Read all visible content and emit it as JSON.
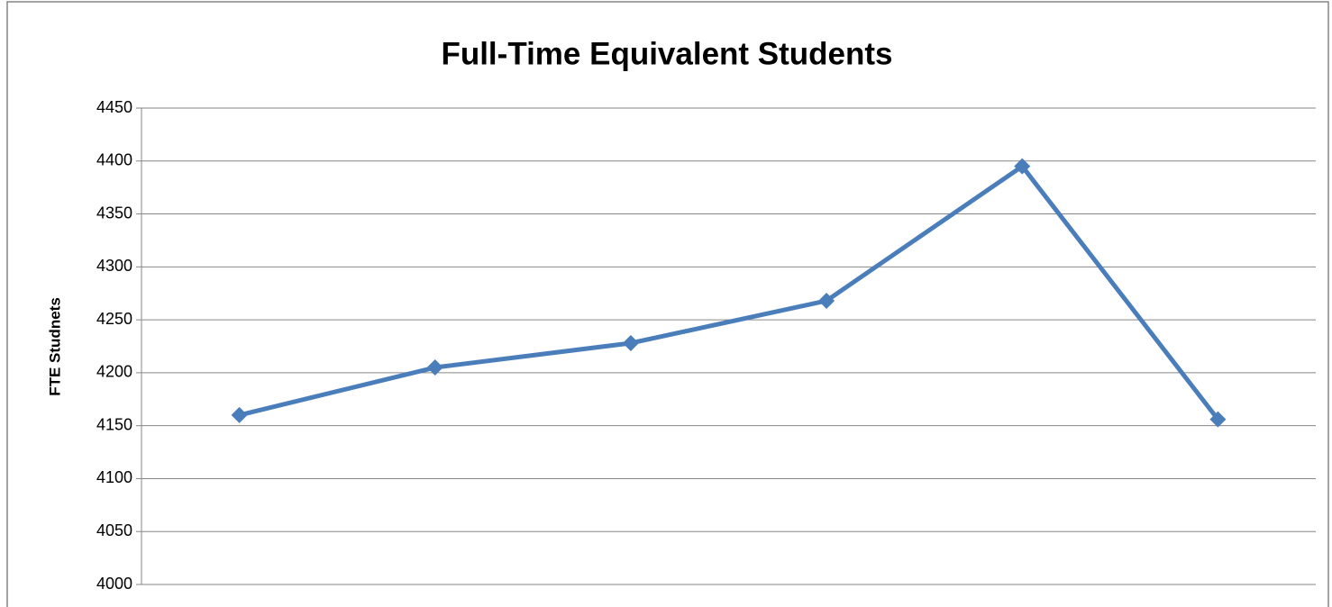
{
  "chart_data": {
    "type": "line",
    "title": "Full-Time Equivalent Students",
    "y_label": "FTE Studnets",
    "categories": [
      null,
      null,
      null,
      null,
      null,
      null
    ],
    "values": [
      4160,
      4205,
      4228,
      4268,
      4395,
      4156
    ],
    "color": "#4a7ebb",
    "ylim": [
      4000,
      4450
    ],
    "yticks": [
      4000,
      4050,
      4100,
      4150,
      4200,
      4250,
      4300,
      4350,
      4400,
      4450
    ],
    "grid": true
  }
}
